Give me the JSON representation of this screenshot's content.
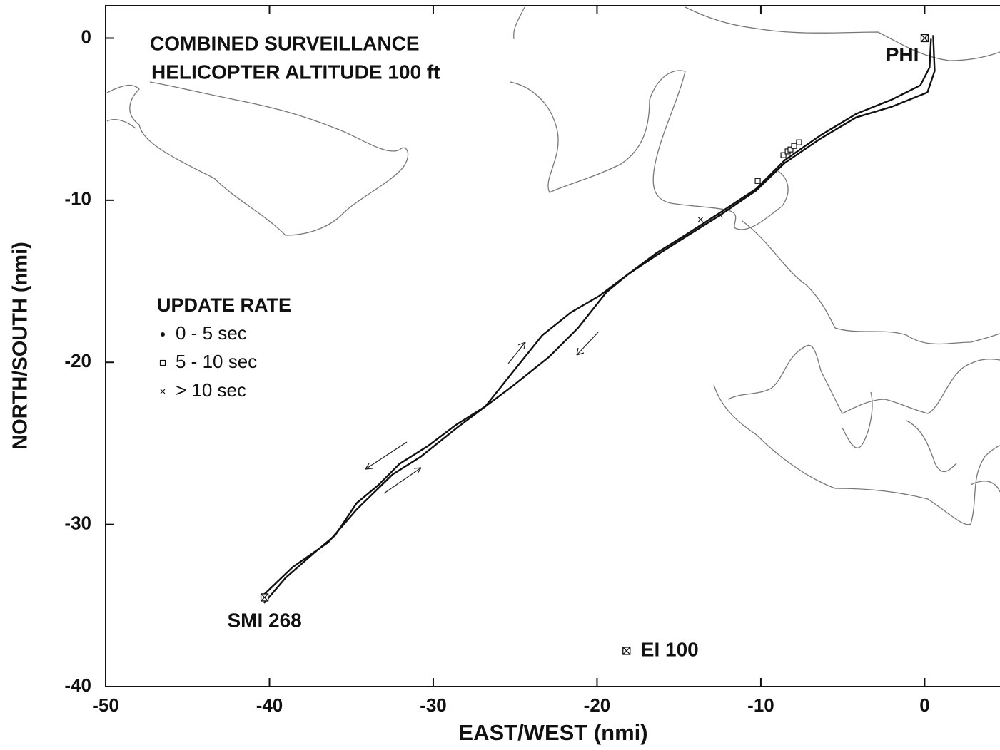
{
  "chart_data": {
    "type": "line",
    "title": [
      "COMBINED SURVEILLANCE",
      "HELICOPTER ALTITUDE 100 ft"
    ],
    "x_label": "EAST/WEST (nmi)",
    "y_label": "NORTH/SOUTH (nmi)",
    "xlim": [
      -50,
      4.6
    ],
    "ylim": [
      -40,
      2
    ],
    "xticks": [
      -50,
      -40,
      -30,
      -20,
      -10,
      0
    ],
    "yticks": [
      -40,
      -30,
      -20,
      -10,
      0
    ],
    "series": [
      {
        "color": "#111111",
        "x": [
          -40.33,
          -39.02,
          -37.28,
          -35.98,
          -34.67,
          -33.36,
          -32.06,
          -30.31,
          -28.57,
          -26.83,
          -25.09,
          -23.34,
          -21.6,
          -19.86,
          -18.12,
          -16.38,
          -14.63,
          -12.46,
          -10.28,
          -8.54,
          -6.36,
          -4.18,
          -2.0,
          -0.26,
          0.3,
          0.39
        ],
        "values": [
          -34.85,
          -33.3,
          -31.76,
          -30.66,
          -28.68,
          -27.58,
          -26.26,
          -25.15,
          -23.83,
          -22.73,
          -20.53,
          -18.33,
          -16.92,
          -15.9,
          -14.58,
          -13.26,
          -12.16,
          -10.75,
          -9.29,
          -7.53,
          -6.0,
          -4.67,
          -3.79,
          -2.91,
          -1.81,
          -0.04
        ]
      },
      {
        "color": "#111111",
        "x": [
          -40.42,
          -38.59,
          -36.41,
          -34.67,
          -32.49,
          -30.75,
          -28.57,
          -26.83,
          -25.09,
          -22.91,
          -21.17,
          -19.43,
          -18.12,
          -16.38,
          -12.46,
          -10.28,
          -8.54,
          -6.36,
          -4.18,
          -2.0,
          0.17,
          0.61,
          0.52
        ],
        "values": [
          -34.41,
          -32.64,
          -31.1,
          -29.07,
          -26.92,
          -25.81,
          -24.05,
          -22.73,
          -21.41,
          -19.65,
          -17.89,
          -15.68,
          -14.58,
          -13.4,
          -10.9,
          -9.4,
          -7.7,
          -6.2,
          -4.89,
          -4.23,
          -3.35,
          -2.03,
          0.18
        ]
      }
    ],
    "points_5_10": {
      "x": [
        -10.19,
        -8.62,
        -8.36,
        -8.19,
        -7.97,
        -7.67
      ],
      "values": [
        -8.81,
        -7.22,
        -6.99,
        -6.87,
        -6.65,
        -6.43
      ]
    },
    "points_over_10": {
      "x": [
        -13.68,
        -12.46
      ],
      "values": [
        -11.19,
        -10.93
      ]
    },
    "sites": [
      {
        "label": "PHI",
        "x": 0,
        "y": 0
      },
      {
        "label": "SMI 268",
        "x": -40.3,
        "y": -34.5
      },
      {
        "label": "EI 100",
        "x": -18.2,
        "y": -37.8
      }
    ],
    "legend": {
      "title": "UPDATE RATE",
      "items": [
        {
          "label": "0 - 5 sec",
          "marker": "dot"
        },
        {
          "label": "5 - 10 sec",
          "marker": "square"
        },
        {
          "label": "> 10 sec",
          "marker": "x"
        }
      ]
    }
  }
}
